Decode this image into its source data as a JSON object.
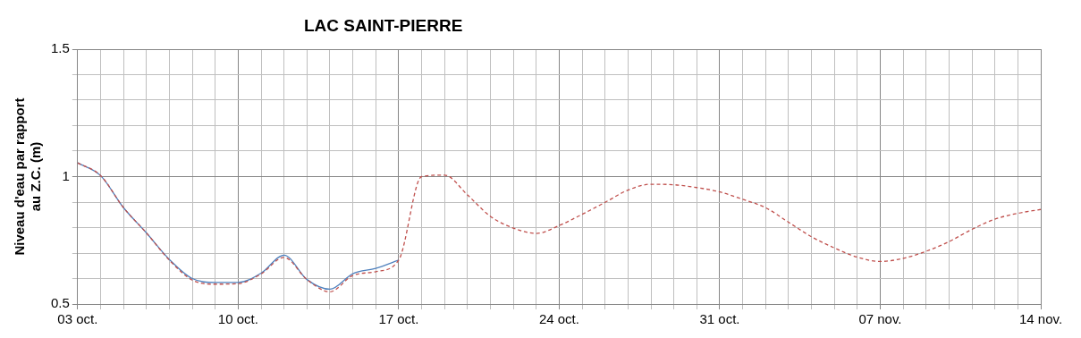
{
  "chart_data": {
    "type": "line",
    "title": "LAC SAINT-PIERRE",
    "ylabel": "Niveau d'eau par rapport au Z.C. (m)",
    "xlim": [
      "--10-03",
      "--11-14"
    ],
    "xticks": [
      {
        "value": "--10-03",
        "label": "03 oct."
      },
      {
        "value": "--10-04",
        "label": null
      },
      {
        "value": "--10-05",
        "label": null
      },
      {
        "value": "--10-06",
        "label": null
      },
      {
        "value": "--10-07",
        "label": null
      },
      {
        "value": "--10-08",
        "label": null
      },
      {
        "value": "--10-09",
        "label": null
      },
      {
        "value": "--10-10",
        "label": "10 oct."
      },
      {
        "value": "--10-11",
        "label": null
      },
      {
        "value": "--10-12",
        "label": null
      },
      {
        "value": "--10-13",
        "label": null
      },
      {
        "value": "--10-14",
        "label": null
      },
      {
        "value": "--10-15",
        "label": null
      },
      {
        "value": "--10-16",
        "label": null
      },
      {
        "value": "--10-17",
        "label": "17 oct."
      },
      {
        "value": "--10-18",
        "label": null
      },
      {
        "value": "--10-19",
        "label": null
      },
      {
        "value": "--10-20",
        "label": null
      },
      {
        "value": "--10-21",
        "label": null
      },
      {
        "value": "--10-22",
        "label": null
      },
      {
        "value": "--10-23",
        "label": null
      },
      {
        "value": "--10-24",
        "label": "24 oct."
      },
      {
        "value": "--10-25",
        "label": null
      },
      {
        "value": "--10-26",
        "label": null
      },
      {
        "value": "--10-27",
        "label": null
      },
      {
        "value": "--10-28",
        "label": null
      },
      {
        "value": "--10-29",
        "label": null
      },
      {
        "value": "--10-30",
        "label": null
      },
      {
        "value": "--10-31",
        "label": "31 oct."
      },
      {
        "value": "--11-01",
        "label": null
      },
      {
        "value": "--11-02",
        "label": null
      },
      {
        "value": "--11-03",
        "label": null
      },
      {
        "value": "--11-04",
        "label": null
      },
      {
        "value": "--11-05",
        "label": null
      },
      {
        "value": "--11-06",
        "label": null
      },
      {
        "value": "--11-07",
        "label": "07 nov."
      },
      {
        "value": "--11-08",
        "label": null
      },
      {
        "value": "--11-09",
        "label": null
      },
      {
        "value": "--11-10",
        "label": null
      },
      {
        "value": "--11-11",
        "label": null
      },
      {
        "value": "--11-12",
        "label": null
      },
      {
        "value": "--11-13",
        "label": null
      },
      {
        "value": "--11-14",
        "label": "14 nov."
      }
    ],
    "ylim": [
      0.5,
      1.5
    ],
    "yticks": [
      0.5,
      {
        "value": 0.6,
        "label": null
      },
      {
        "value": 0.7,
        "label": null
      },
      {
        "value": 0.8,
        "label": null
      },
      {
        "value": 0.9,
        "label": null
      },
      1,
      {
        "value": 1.1,
        "label": null
      },
      {
        "value": 1.2,
        "label": null
      },
      {
        "value": 1.3,
        "label": null
      },
      {
        "value": 1.4,
        "label": null
      },
      1.5
    ],
    "grid": true,
    "legend": false,
    "marker": "none",
    "series": [
      {
        "color": "#4f81bd",
        "line_style": "solid",
        "x": [
          "--10-03",
          "--10-04",
          "--10-05",
          "--10-06",
          "--10-07",
          "--10-08",
          "--10-09",
          "--10-10",
          "--10-11",
          "--10-12",
          "--10-13",
          "--10-14",
          "--10-15",
          "--10-16",
          "--10-17"
        ],
        "values": [
          1.054,
          1.004,
          0.878,
          0.779,
          0.675,
          0.6,
          0.585,
          0.585,
          0.621,
          0.692,
          0.596,
          0.558,
          0.619,
          0.64,
          0.672
        ]
      },
      {
        "color": "#c0504d",
        "line_style": "dashed",
        "x": [
          "--10-03",
          "--10-04",
          "--10-05",
          "--10-06",
          "--10-07",
          "--10-08",
          "--10-09",
          "--10-10",
          "--10-11",
          "--10-12",
          "--10-13",
          "--10-14",
          "--10-15",
          "--10-16",
          "--10-17",
          "--10-18",
          "--10-19",
          "--10-20",
          "--10-21",
          "--10-22",
          "--10-23",
          "--10-24",
          "--10-25",
          "--10-26",
          "--10-27",
          "--10-28",
          "--10-29",
          "--10-30",
          "--10-31",
          "--11-01",
          "--11-02",
          "--11-03",
          "--11-04",
          "--11-05",
          "--11-06",
          "--11-07",
          "--11-08",
          "--11-09",
          "--11-10",
          "--11-11",
          "--11-12",
          "--11-13",
          "--11-14"
        ],
        "values": [
          1.054,
          1.004,
          0.878,
          0.779,
          0.672,
          0.594,
          0.578,
          0.58,
          0.618,
          0.683,
          0.596,
          0.548,
          0.612,
          0.627,
          0.672,
          1.0,
          1.006,
          0.928,
          0.844,
          0.798,
          0.777,
          0.808,
          0.852,
          0.899,
          0.947,
          0.97,
          0.968,
          0.957,
          0.94,
          0.911,
          0.878,
          0.821,
          0.764,
          0.72,
          0.684,
          0.667,
          0.679,
          0.707,
          0.745,
          0.793,
          0.833,
          0.856,
          0.871
        ]
      }
    ]
  }
}
